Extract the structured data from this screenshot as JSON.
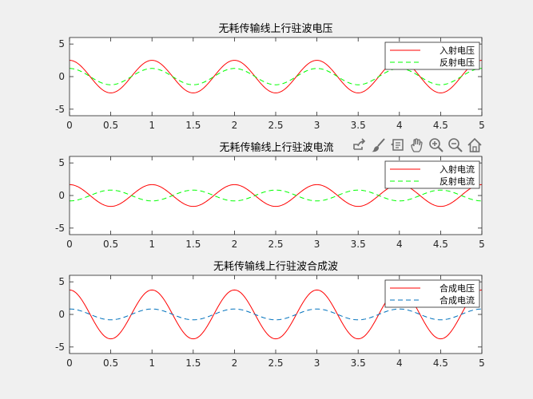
{
  "toolbar": {
    "icons": [
      "export-icon",
      "brush-icon",
      "datatip-icon",
      "pan-icon",
      "zoom-in-icon",
      "zoom-out-icon",
      "home-icon"
    ]
  },
  "chart_data": [
    {
      "type": "line",
      "title": "无耗传输线上行驻波电压",
      "xlim": [
        0,
        5
      ],
      "ylim": [
        -6,
        6
      ],
      "xticks": [
        "0",
        "0.5",
        "1",
        "1.5",
        "2",
        "2.5",
        "3",
        "3.5",
        "4",
        "4.5",
        "5"
      ],
      "yticks": [
        "-5",
        "0",
        "5"
      ],
      "grid": false,
      "legend_position": "top-right",
      "series": [
        {
          "name": "入射电压",
          "amplitude": 2.5,
          "phase": 0,
          "period": 1,
          "color": "#ff0000",
          "dash": "solid"
        },
        {
          "name": "反射电压",
          "amplitude": 1.25,
          "phase": 0,
          "period": 1,
          "color": "#00ff00",
          "dash": "dashed"
        }
      ]
    },
    {
      "type": "line",
      "title": "无耗传输线上行驻波电流",
      "xlim": [
        0,
        5
      ],
      "ylim": [
        -6,
        6
      ],
      "xticks": [
        "0",
        "0.5",
        "1",
        "1.5",
        "2",
        "2.5",
        "3",
        "3.5",
        "4",
        "4.5",
        "5"
      ],
      "yticks": [
        "-5",
        "0",
        "5"
      ],
      "grid": false,
      "legend_position": "top-right",
      "series": [
        {
          "name": "入射电流",
          "amplitude": 1.67,
          "phase": 0,
          "period": 1,
          "color": "#ff0000",
          "dash": "solid"
        },
        {
          "name": "反射电流",
          "amplitude": -0.83,
          "phase": 0,
          "period": 1,
          "color": "#00ff00",
          "dash": "dashed"
        }
      ]
    },
    {
      "type": "line",
      "title": "无耗传输线上行驻波合成波",
      "xlim": [
        0,
        5
      ],
      "ylim": [
        -6,
        6
      ],
      "xticks": [
        "0",
        "0.5",
        "1",
        "1.5",
        "2",
        "2.5",
        "3",
        "3.5",
        "4",
        "4.5",
        "5"
      ],
      "yticks": [
        "-5",
        "0",
        "5"
      ],
      "grid": false,
      "legend_position": "top-right",
      "series": [
        {
          "name": "合成电压",
          "amplitude": 3.75,
          "phase": 0,
          "period": 1,
          "color": "#ff0000",
          "dash": "solid"
        },
        {
          "name": "合成电流",
          "amplitude": 0.83,
          "phase": 0,
          "period": 1,
          "color": "#0072bd",
          "dash": "dashed"
        }
      ]
    }
  ]
}
